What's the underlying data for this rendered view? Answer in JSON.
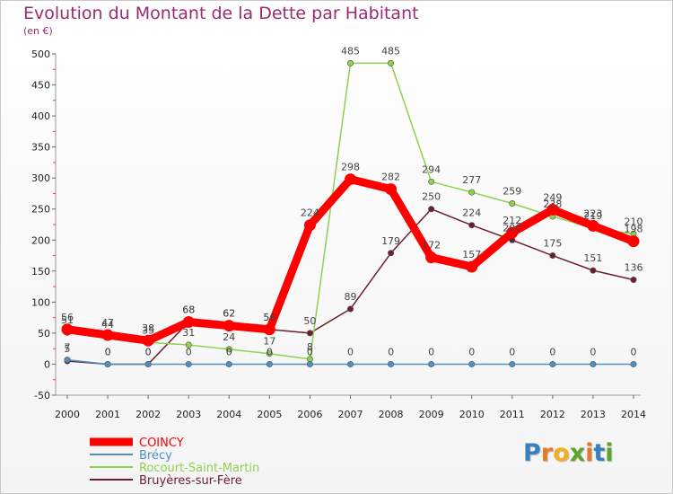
{
  "chart_data": {
    "type": "line",
    "title": "Evolution du Montant de la Dette par Habitant",
    "subtitle": "(en €)",
    "x": [
      "2000",
      "2001",
      "2002",
      "2003",
      "2004",
      "2005",
      "2006",
      "2007",
      "2008",
      "2009",
      "2010",
      "2011",
      "2012",
      "2013",
      "2014"
    ],
    "ylim": [
      -50,
      500
    ],
    "yticks": [
      -50,
      0,
      50,
      100,
      150,
      200,
      250,
      300,
      350,
      400,
      450,
      500
    ],
    "grid": false,
    "legend_position": "bottom-left",
    "series": [
      {
        "name": "COINCY",
        "color": "#ff0000",
        "values": [
          56,
          47,
          38,
          68,
          62,
          56,
          224,
          298,
          282,
          172,
          157,
          212,
          249,
          223,
          198
        ],
        "labels": [
          "56",
          "47",
          "38",
          "68",
          "62",
          "56",
          "224",
          "298",
          "282",
          "172",
          "157",
          "212",
          "249",
          "223",
          "198"
        ]
      },
      {
        "name": "Brécy",
        "color": "#4f8fc4",
        "values": [
          7,
          0,
          0,
          0,
          0,
          0,
          0,
          0,
          0,
          0,
          0,
          0,
          0,
          0,
          0
        ],
        "labels": [
          "7",
          "0",
          "0",
          "0",
          "0",
          "0",
          "0",
          "0",
          "0",
          "0",
          "0",
          "0",
          "0",
          "0",
          "0"
        ]
      },
      {
        "name": "Rocourt-Saint-Martin",
        "color": "#8fd14f",
        "values": [
          51,
          44,
          35,
          31,
          24,
          17,
          8,
          485,
          485,
          294,
          277,
          259,
          238,
          219,
          210
        ],
        "labels": [
          "51",
          "44",
          "35",
          "31",
          "24",
          "17",
          "8",
          "485",
          "485",
          "294",
          "277",
          "259",
          "238",
          "219",
          "210"
        ]
      },
      {
        "name": "Bruyères-sur-Fère",
        "color": "#6b1f2a",
        "values": [
          5,
          0,
          0,
          68,
          62,
          56,
          50,
          89,
          179,
          250,
          224,
          200,
          175,
          151,
          136
        ],
        "labels": [
          "5",
          "0",
          "0",
          "68",
          "62",
          "56",
          "50",
          "89",
          "179",
          "250",
          "224",
          "200",
          "175",
          "151",
          "136"
        ]
      }
    ]
  },
  "logo": {
    "text": "Proxiti"
  }
}
